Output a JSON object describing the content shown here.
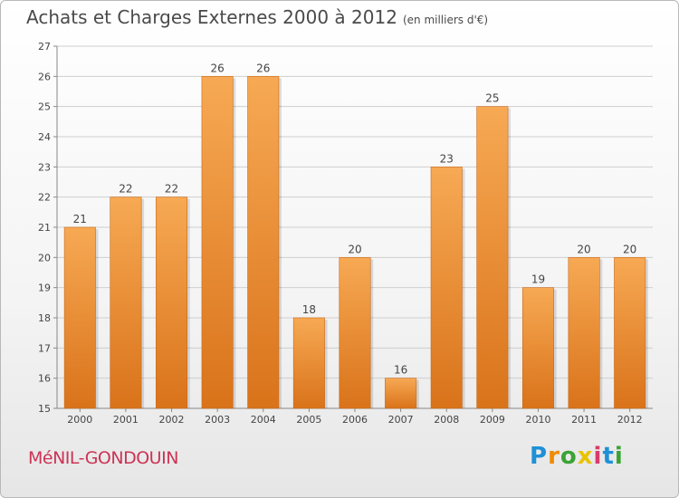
{
  "header": {
    "title": "Achats et Charges Externes 2000 à 2012",
    "subtitle": "(en milliers d'€)"
  },
  "footer": {
    "commune": "MéNIL-GONDOUIN",
    "logo_letters": [
      "P",
      "r",
      "o",
      "x",
      "i",
      "t",
      "i"
    ]
  },
  "colors": {
    "bar_top": "#f7a954",
    "bar_bottom": "#d9731a",
    "grid": "#cfcfcf",
    "text": "#444444",
    "commune": "#cc3355"
  },
  "chart_data": {
    "type": "bar",
    "title": "Achats et Charges Externes 2000 à 2012",
    "subtitle": "(en milliers d'€)",
    "categories": [
      "2000",
      "2001",
      "2002",
      "2003",
      "2004",
      "2005",
      "2006",
      "2007",
      "2008",
      "2009",
      "2010",
      "2011",
      "2012"
    ],
    "values": [
      21,
      22,
      22,
      26,
      26,
      18,
      20,
      16,
      23,
      25,
      19,
      20,
      20
    ],
    "data_labels": [
      "21",
      "22",
      "22",
      "26",
      "26",
      "18",
      "20",
      "16",
      "23",
      "25",
      "19",
      "20",
      "20"
    ],
    "yticks": [
      "15",
      "16",
      "17",
      "18",
      "19",
      "20",
      "21",
      "22",
      "23",
      "24",
      "25",
      "26",
      "27"
    ],
    "ylim": [
      15,
      27
    ],
    "xlabel": "",
    "ylabel": "",
    "grid": true,
    "legend": "none"
  }
}
